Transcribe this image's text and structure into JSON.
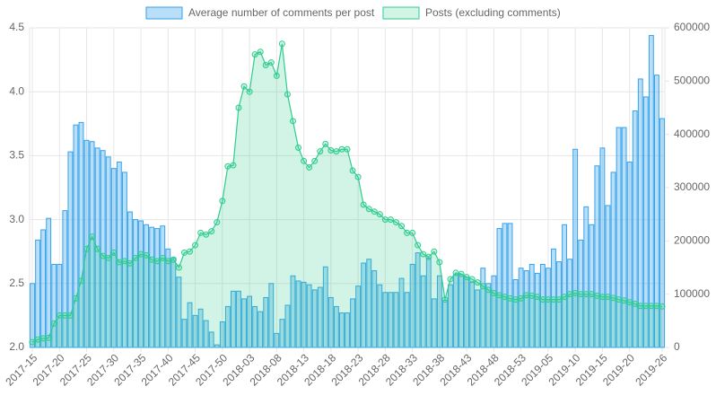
{
  "chart_data": {
    "type": "bar",
    "legend": "top",
    "grid": true,
    "categories": [
      "2017-15",
      null,
      null,
      null,
      null,
      "2017-20",
      null,
      null,
      null,
      null,
      "2017-25",
      null,
      null,
      null,
      null,
      "2017-30",
      null,
      null,
      null,
      null,
      "2017-35",
      null,
      null,
      null,
      null,
      "2017-40",
      null,
      null,
      null,
      null,
      "2017-45",
      null,
      null,
      null,
      null,
      "2017-50",
      null,
      null,
      null,
      null,
      "2018-03",
      null,
      null,
      null,
      null,
      "2018-08",
      null,
      null,
      null,
      null,
      "2018-13",
      null,
      null,
      null,
      null,
      "2018-18",
      null,
      null,
      null,
      null,
      "2018-23",
      null,
      null,
      null,
      null,
      "2018-28",
      null,
      null,
      null,
      null,
      "2018-33",
      null,
      null,
      null,
      null,
      "2018-38",
      null,
      null,
      null,
      null,
      "2018-43",
      null,
      null,
      null,
      null,
      "2018-48",
      null,
      null,
      null,
      null,
      "2018-53",
      null,
      null,
      null,
      null,
      "2019-05",
      null,
      null,
      null,
      null,
      "2019-10",
      null,
      null,
      null,
      null,
      "2019-15",
      null,
      null,
      null,
      null,
      "2019-20",
      null,
      null,
      null,
      null,
      null,
      "2019-26"
    ],
    "series": [
      {
        "name": "Average number of comments per post",
        "type": "bar",
        "axis": "y",
        "color": "#36a2eb",
        "fill": "rgba(54,162,235,0.35)",
        "values": [
          2.5,
          2.84,
          2.92,
          3.01,
          2.65,
          2.65,
          3.07,
          3.53,
          3.74,
          3.76,
          3.62,
          3.61,
          3.56,
          3.54,
          3.49,
          3.4,
          3.45,
          3.37,
          3.06,
          3.0,
          2.99,
          2.96,
          2.94,
          2.93,
          2.95,
          2.77,
          2.7,
          2.55,
          2.22,
          2.35,
          2.25,
          2.3,
          2.21,
          2.12,
          2.02,
          2.2,
          2.32,
          2.44,
          2.44,
          2.38,
          2.4,
          2.32,
          2.28,
          2.39,
          2.5,
          2.11,
          2.22,
          2.33,
          2.56,
          2.52,
          2.51,
          2.49,
          2.45,
          2.47,
          2.63,
          2.39,
          2.32,
          2.27,
          2.27,
          2.38,
          2.48,
          2.66,
          2.69,
          2.6,
          2.49,
          2.43,
          2.43,
          2.43,
          2.54,
          2.43,
          2.65,
          2.74,
          2.56,
          2.7,
          2.38,
          2.56,
          2.37,
          2.49,
          2.57,
          2.57,
          2.55,
          2.51,
          2.45,
          2.62,
          2.5,
          2.56,
          2.93,
          2.97,
          2.97,
          2.53,
          2.62,
          2.6,
          2.65,
          2.58,
          2.65,
          2.62,
          2.77,
          2.67,
          2.96,
          2.69,
          3.55,
          2.84,
          3.1,
          2.96,
          3.42,
          3.56,
          3.11,
          3.37,
          3.72,
          3.72,
          3.45,
          3.85,
          4.1,
          3.96,
          4.44,
          4.13,
          3.79
        ]
      },
      {
        "name": "Posts (excluding comments)",
        "type": "line",
        "axis": "y2",
        "color": "#2ecc8f",
        "fill": "rgba(46,204,143,0.22)",
        "values": [
          10000,
          15000,
          17000,
          18000,
          45000,
          60000,
          60000,
          60000,
          92000,
          125000,
          185000,
          208000,
          185000,
          172000,
          168000,
          178000,
          160000,
          162000,
          158000,
          168000,
          175000,
          173000,
          165000,
          162000,
          168000,
          162000,
          165000,
          150000,
          178000,
          180000,
          192000,
          215000,
          212000,
          218000,
          235000,
          275000,
          340000,
          342000,
          450000,
          490000,
          480000,
          550000,
          555000,
          530000,
          535000,
          510000,
          570000,
          475000,
          425000,
          375000,
          350000,
          338000,
          350000,
          368000,
          382000,
          370000,
          368000,
          372000,
          372000,
          332000,
          320000,
          268000,
          260000,
          255000,
          250000,
          240000,
          240000,
          235000,
          228000,
          215000,
          215000,
          192000,
          175000,
          170000,
          180000,
          160000,
          90000,
          128000,
          140000,
          138000,
          132000,
          128000,
          122000,
          115000,
          108000,
          102000,
          98000,
          95000,
          92000,
          90000,
          92000,
          98000,
          97000,
          95000,
          90000,
          90000,
          90000,
          90000,
          95000,
          100000,
          102000,
          100000,
          100000,
          100000,
          97000,
          95000,
          95000,
          93000,
          90000,
          88000,
          85000,
          82000,
          78000,
          78000,
          78000,
          78000,
          77000
        ]
      }
    ],
    "ylim": [
      2.0,
      4.5
    ],
    "yticks": [
      {
        "value": 2,
        "label": "2.0"
      },
      2.5,
      {
        "value": 3,
        "label": "3.0"
      },
      3.5,
      {
        "value": 4,
        "label": "4.0"
      },
      4.5
    ],
    "y2lim": [
      0,
      600000
    ],
    "y2ticks": [
      0,
      100000,
      200000,
      300000,
      400000,
      500000,
      600000
    ]
  }
}
